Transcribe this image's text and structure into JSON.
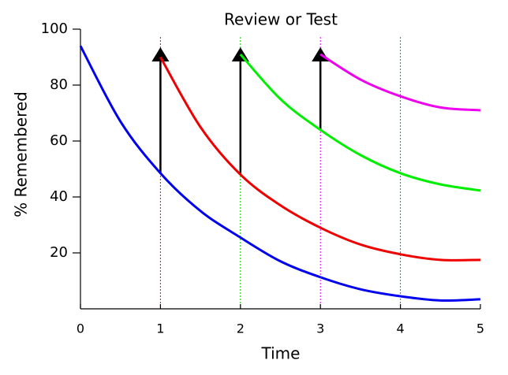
{
  "chart_data": {
    "type": "line",
    "title": "Review or Test",
    "xlabel": "Time",
    "ylabel": "% Remembered",
    "x": [
      0,
      0.5,
      1,
      1.5,
      2,
      2.5,
      3,
      3.5,
      4,
      4.5,
      5
    ],
    "series": [
      {
        "color": "#0000ee",
        "values": [
          94,
          67,
          48.5,
          35,
          25.5,
          17,
          11.3,
          7,
          4.5,
          3,
          3.4
        ]
      },
      {
        "color": "#ee0000",
        "values": [
          null,
          null,
          90,
          65,
          48,
          37,
          29,
          23,
          19.5,
          17.5,
          17.5
        ]
      },
      {
        "color": "#00ee00",
        "values": [
          null,
          null,
          null,
          null,
          91,
          75,
          64,
          55,
          48.5,
          44.5,
          42.3
        ]
      },
      {
        "color": "#ee00ee",
        "values": [
          null,
          null,
          null,
          null,
          null,
          null,
          91,
          82,
          76,
          72,
          71
        ]
      }
    ],
    "vlines": [
      {
        "x": 1,
        "color": "#ee0000"
      },
      {
        "x": 2,
        "color": "#00cc00"
      },
      {
        "x": 3,
        "color": "#ee00ee"
      },
      {
        "x": 4,
        "color": "#008899"
      }
    ],
    "xlim": [
      0,
      5
    ],
    "xticks": [
      0,
      1,
      2,
      3,
      4,
      5
    ],
    "ylim": [
      0,
      100
    ],
    "yticks": [
      20,
      40,
      60,
      80,
      100
    ]
  }
}
